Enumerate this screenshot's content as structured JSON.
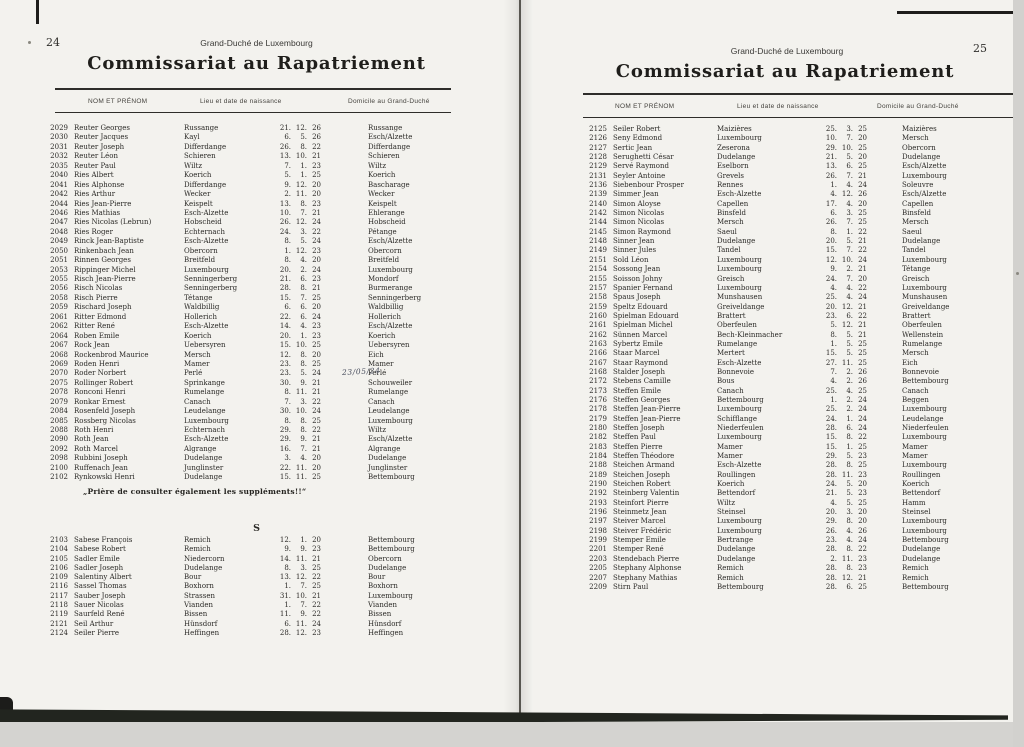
{
  "left": {
    "page_number": "24",
    "kicker": "Grand-Duché de Luxembourg",
    "title": "Commissariat au Rapatriement",
    "columns": {
      "name": "NOM ET PRÉNOM",
      "birth": "Lieu et date de naissance",
      "domicile": "Domicile au Grand-Duché"
    },
    "rows": [
      {
        "id": "2029",
        "name": "Reuter Georges",
        "birth": "Russange",
        "date": "21. 12. 26",
        "dom": "Russange"
      },
      {
        "id": "2030",
        "name": "Reuter Jacques",
        "birth": "Kayl",
        "date": "6. 5. 26",
        "dom": "Esch/Alzette"
      },
      {
        "id": "2031",
        "name": "Reuter Joseph",
        "birth": "Differdange",
        "date": "26. 8. 22",
        "dom": "Differdange"
      },
      {
        "id": "2032",
        "name": "Reuter Léon",
        "birth": "Schieren",
        "date": "13. 10. 21",
        "dom": "Schieren"
      },
      {
        "id": "2035",
        "name": "Reuter Paul",
        "birth": "Wiltz",
        "date": "7. 1. 23",
        "dom": "Wiltz"
      },
      {
        "id": "2040",
        "name": "Ries Albert",
        "birth": "Koerich",
        "date": "5. 1. 25",
        "dom": "Koerich"
      },
      {
        "id": "2041",
        "name": "Ries Alphonse",
        "birth": "Differdange",
        "date": "9. 12. 20",
        "dom": "Bascharage"
      },
      {
        "id": "2042",
        "name": "Ries Arthur",
        "birth": "Wecker",
        "date": "2. 11. 20",
        "dom": "Wecker"
      },
      {
        "id": "2044",
        "name": "Ries Jean-Pierre",
        "birth": "Keispelt",
        "date": "13. 8. 23",
        "dom": "Keispelt"
      },
      {
        "id": "2046",
        "name": "Ries Mathias",
        "birth": "Esch-Alzette",
        "date": "10. 7. 21",
        "dom": "Ehlerange"
      },
      {
        "id": "2047",
        "name": "Ries Nicolas (Lebrun)",
        "birth": "Hobscheid",
        "date": "26. 12. 24",
        "dom": "Hobscheid"
      },
      {
        "id": "2048",
        "name": "Ries Roger",
        "birth": "Echternach",
        "date": "24. 3. 22",
        "dom": "Pétange"
      },
      {
        "id": "2049",
        "name": "Rinck Jean-Baptiste",
        "birth": "Esch-Alzette",
        "date": "8. 5. 24",
        "dom": "Esch/Alzette"
      },
      {
        "id": "2050",
        "name": "Rinkenbach Jean",
        "birth": "Obercorn",
        "date": "1. 12. 23",
        "dom": "Obercorn"
      },
      {
        "id": "2051",
        "name": "Rinnen Georges",
        "birth": "Breitfeld",
        "date": "8. 4. 20",
        "dom": "Breitfeld"
      },
      {
        "id": "2053",
        "name": "Rippinger Michel",
        "birth": "Luxembourg",
        "date": "20. 2. 24",
        "dom": "Luxembourg"
      },
      {
        "id": "2055",
        "name": "Risch Jean-Pierre",
        "birth": "Senningerberg",
        "date": "21. 6. 23",
        "dom": "Mondorf"
      },
      {
        "id": "2056",
        "name": "Risch Nicolas",
        "birth": "Senningerberg",
        "date": "28. 8. 21",
        "dom": "Burmerange"
      },
      {
        "id": "2058",
        "name": "Risch Pierre",
        "birth": "Tétange",
        "date": "15. 7. 25",
        "dom": "Senningerberg"
      },
      {
        "id": "2059",
        "name": "Rischard Joseph",
        "birth": "Waldbillig",
        "date": "6. 6. 20",
        "dom": "Waldbillig"
      },
      {
        "id": "2061",
        "name": "Ritter Edmond",
        "birth": "Hollerich",
        "date": "22. 6. 24",
        "dom": "Hollerich"
      },
      {
        "id": "2062",
        "name": "Ritter René",
        "birth": "Esch-Alzette",
        "date": "14. 4. 23",
        "dom": "Esch/Alzette"
      },
      {
        "id": "2064",
        "name": "Roben Emile",
        "birth": "Koerich",
        "date": "20. 1. 23",
        "dom": "Koerich"
      },
      {
        "id": "2067",
        "name": "Rock Jean",
        "birth": "Uebersyren",
        "date": "15. 10. 25",
        "dom": "Uebersyren"
      },
      {
        "id": "2068",
        "name": "Rockenbrod Maurice",
        "birth": "Mersch",
        "date": "12. 8. 20",
        "dom": "Eich"
      },
      {
        "id": "2069",
        "name": "Roden Henri",
        "birth": "Mamer",
        "date": "23. 8. 25",
        "dom": "Mamer"
      },
      {
        "id": "2070",
        "name": "Roder Norbert",
        "birth": "Perlé",
        "date": "23. 5. 24",
        "dom": "Perlé",
        "hand": "23/05/24"
      },
      {
        "id": "2075",
        "name": "Rollinger Robert",
        "birth": "Sprinkange",
        "date": "30. 9. 21",
        "dom": "Schouweiler"
      },
      {
        "id": "2078",
        "name": "Ronconi Henri",
        "birth": "Rumelange",
        "date": "8. 11. 21",
        "dom": "Rumelange"
      },
      {
        "id": "2079",
        "name": "Ronkar Ernest",
        "birth": "Canach",
        "date": "7. 3. 22",
        "dom": "Canach"
      },
      {
        "id": "2084",
        "name": "Rosenfeld Joseph",
        "birth": "Leudelange",
        "date": "30. 10. 24",
        "dom": "Leudelange"
      },
      {
        "id": "2085",
        "name": "Rossberg Nicolas",
        "birth": "Luxembourg",
        "date": "8. 8. 25",
        "dom": "Luxembourg"
      },
      {
        "id": "2088",
        "name": "Roth Henri",
        "birth": "Echternach",
        "date": "29. 8. 22",
        "dom": "Wiltz"
      },
      {
        "id": "2090",
        "name": "Roth Jean",
        "birth": "Esch-Alzette",
        "date": "29. 9. 21",
        "dom": "Esch/Alzette"
      },
      {
        "id": "2092",
        "name": "Roth Marcel",
        "birth": "Algrange",
        "date": "16. 7. 21",
        "dom": "Algrange"
      },
      {
        "id": "2098",
        "name": "Rubbini Joseph",
        "birth": "Dudelange",
        "date": "3. 4. 20",
        "dom": "Dudelange"
      },
      {
        "id": "2100",
        "name": "Ruffenach Jean",
        "birth": "Junglinster",
        "date": "22. 11. 20",
        "dom": "Junglinster"
      },
      {
        "id": "2102",
        "name": "Rynkowski Henri",
        "birth": "Dudelange",
        "date": "15. 11. 25",
        "dom": "Bettembourg"
      }
    ],
    "note": "„Prière de consulter également les suppléments!!“",
    "section_letter": "S",
    "rows_s": [
      {
        "id": "2103",
        "name": "Sabese François",
        "birth": "Remich",
        "date": "12. 1. 20",
        "dom": "Bettembourg"
      },
      {
        "id": "2104",
        "name": "Sabese Robert",
        "birth": "Remich",
        "date": "9. 9. 23",
        "dom": "Bettembourg"
      },
      {
        "id": "2105",
        "name": "Sadler Emile",
        "birth": "Niedercorn",
        "date": "14. 11. 21",
        "dom": "Obercorn"
      },
      {
        "id": "2106",
        "name": "Sadler Joseph",
        "birth": "Dudelange",
        "date": "8. 3. 25",
        "dom": "Dudelange"
      },
      {
        "id": "2109",
        "name": "Salentiny Albert",
        "birth": "Bour",
        "date": "13. 12. 22",
        "dom": "Bour"
      },
      {
        "id": "2116",
        "name": "Sassel Thomas",
        "birth": "Boxhorn",
        "date": "1. 7. 25",
        "dom": "Boxhorn"
      },
      {
        "id": "2117",
        "name": "Sauber Joseph",
        "birth": "Strassen",
        "date": "31. 10. 21",
        "dom": "Luxembourg"
      },
      {
        "id": "2118",
        "name": "Sauer Nicolas",
        "birth": "Vianden",
        "date": "1. 7. 22",
        "dom": "Vianden"
      },
      {
        "id": "2119",
        "name": "Saurfeld René",
        "birth": "Bissen",
        "date": "11. 9. 22",
        "dom": "Bissen"
      },
      {
        "id": "2121",
        "name": "Seil Arthur",
        "birth": "Hünsdorf",
        "date": "6. 11. 24",
        "dom": "Hünsdorf"
      },
      {
        "id": "2124",
        "name": "Seiler Pierre",
        "birth": "Heffingen",
        "date": "28. 12. 23",
        "dom": "Heffingen"
      }
    ]
  },
  "right": {
    "page_number": "25",
    "kicker": "Grand-Duché de Luxembourg",
    "title": "Commissariat au Rapatriement",
    "columns": {
      "name": "NOM ET PRÉNOM",
      "birth": "Lieu et date de naissance",
      "domicile": "Domicile au Grand-Duché"
    },
    "rows": [
      {
        "id": "2125",
        "name": "Seiler Robert",
        "birth": "Maizières",
        "date": "25. 3. 25",
        "dom": "Maizières"
      },
      {
        "id": "2126",
        "name": "Seny Edmond",
        "birth": "Luxembourg",
        "date": "10. 7. 20",
        "dom": "Mersch"
      },
      {
        "id": "2127",
        "name": "Sertic Jean",
        "birth": "Zeserona",
        "date": "29. 10. 25",
        "dom": "Obercorn"
      },
      {
        "id": "2128",
        "name": "Serughetti César",
        "birth": "Dudelange",
        "date": "21. 5. 20",
        "dom": "Dudelange"
      },
      {
        "id": "2129",
        "name": "Servé Raymond",
        "birth": "Eselborn",
        "date": "13. 6. 25",
        "dom": "Esch/Alzette"
      },
      {
        "id": "2131",
        "name": "Seyler Antoine",
        "birth": "Grevels",
        "date": "26. 7. 21",
        "dom": "Luxembourg"
      },
      {
        "id": "2136",
        "name": "Siebenbour Prosper",
        "birth": "Rennes",
        "date": "1. 4. 24",
        "dom": "Soleuvre"
      },
      {
        "id": "2139",
        "name": "Simmer Jean",
        "birth": "Esch-Alzette",
        "date": "4. 12. 26",
        "dom": "Esch/Alzette"
      },
      {
        "id": "2140",
        "name": "Simon Aloyse",
        "birth": "Capellen",
        "date": "17. 4. 20",
        "dom": "Capellen"
      },
      {
        "id": "2142",
        "name": "Simon Nicolas",
        "birth": "Binsfeld",
        "date": "6. 3. 25",
        "dom": "Binsfeld"
      },
      {
        "id": "2144",
        "name": "Simon Nicolas",
        "birth": "Mersch",
        "date": "26. 7. 25",
        "dom": "Mersch"
      },
      {
        "id": "2145",
        "name": "Simon Raymond",
        "birth": "Saeul",
        "date": "8. 1. 22",
        "dom": "Saeul"
      },
      {
        "id": "2148",
        "name": "Sinner Jean",
        "birth": "Dudelange",
        "date": "20. 5. 21",
        "dom": "Dudelange"
      },
      {
        "id": "2149",
        "name": "Sinner Jules",
        "birth": "Tandel",
        "date": "15. 7. 22",
        "dom": "Tandel"
      },
      {
        "id": "2151",
        "name": "Sold Léon",
        "birth": "Luxembourg",
        "date": "12. 10. 24",
        "dom": "Luxembourg"
      },
      {
        "id": "2154",
        "name": "Sossong Jean",
        "birth": "Luxembourg",
        "date": "9. 2. 21",
        "dom": "Tétange"
      },
      {
        "id": "2155",
        "name": "Soisson Johny",
        "birth": "Greisch",
        "date": "24. 7. 20",
        "dom": "Greisch"
      },
      {
        "id": "2157",
        "name": "Spanier Fernand",
        "birth": "Luxembourg",
        "date": "4. 4. 22",
        "dom": "Luxembourg"
      },
      {
        "id": "2158",
        "name": "Spaus Joseph",
        "birth": "Munshausen",
        "date": "25. 4. 24",
        "dom": "Munshausen"
      },
      {
        "id": "2159",
        "name": "Speltz Edouard",
        "birth": "Greiveldange",
        "date": "20. 12. 21",
        "dom": "Greiveldange"
      },
      {
        "id": "2160",
        "name": "Spielman Edouard",
        "birth": "Brattert",
        "date": "23. 6. 22",
        "dom": "Brattert"
      },
      {
        "id": "2161",
        "name": "Spielman Michel",
        "birth": "Oberfeulen",
        "date": "5. 12. 21",
        "dom": "Oberfeulen"
      },
      {
        "id": "2162",
        "name": "Sünnen Marcel",
        "birth": "Bech-Kleinmacher",
        "date": "8. 5. 21",
        "dom": "Wellenstein"
      },
      {
        "id": "2163",
        "name": "Sybertz Emile",
        "birth": "Rumelange",
        "date": "1. 5. 25",
        "dom": "Rumelange"
      },
      {
        "id": "2166",
        "name": "Staar Marcel",
        "birth": "Mertert",
        "date": "15. 5. 25",
        "dom": "Mersch"
      },
      {
        "id": "2167",
        "name": "Staar Raymond",
        "birth": "Esch-Alzette",
        "date": "27. 11. 25",
        "dom": "Eich"
      },
      {
        "id": "2168",
        "name": "Stalder Joseph",
        "birth": "Bonnevoie",
        "date": "7. 2. 26",
        "dom": "Bonnevoie"
      },
      {
        "id": "2172",
        "name": "Stebens Camille",
        "birth": "Bous",
        "date": "4. 2. 26",
        "dom": "Bettembourg"
      },
      {
        "id": "2173",
        "name": "Steffen Emile",
        "birth": "Canach",
        "date": "25. 4. 25",
        "dom": "Canach"
      },
      {
        "id": "2176",
        "name": "Steffen Georges",
        "birth": "Bettembourg",
        "date": "1. 2. 24",
        "dom": "Beggen"
      },
      {
        "id": "2178",
        "name": "Steffen Jean-Pierre",
        "birth": "Luxembourg",
        "date": "25. 2. 24",
        "dom": "Luxembourg"
      },
      {
        "id": "2179",
        "name": "Steffen Jean-Pierre",
        "birth": "Schifflange",
        "date": "24. 1. 24",
        "dom": "Leudelange"
      },
      {
        "id": "2180",
        "name": "Steffen Joseph",
        "birth": "Niederfeulen",
        "date": "28. 6. 24",
        "dom": "Niederfeulen"
      },
      {
        "id": "2182",
        "name": "Steffen Paul",
        "birth": "Luxembourg",
        "date": "15. 8. 22",
        "dom": "Luxembourg"
      },
      {
        "id": "2183",
        "name": "Steffen Pierre",
        "birth": "Mamer",
        "date": "15. 1. 25",
        "dom": "Mamer"
      },
      {
        "id": "2184",
        "name": "Steffen Théodore",
        "birth": "Mamer",
        "date": "29. 5. 23",
        "dom": "Mamer"
      },
      {
        "id": "2188",
        "name": "Steichen Armand",
        "birth": "Esch-Alzette",
        "date": "28. 8. 25",
        "dom": "Luxembourg"
      },
      {
        "id": "2189",
        "name": "Steichen Joseph",
        "birth": "Roullingen",
        "date": "28. 11. 23",
        "dom": "Roullingen"
      },
      {
        "id": "2190",
        "name": "Steichen Robert",
        "birth": "Koerich",
        "date": "24. 5. 20",
        "dom": "Koerich"
      },
      {
        "id": "2192",
        "name": "Steinberg Valentin",
        "birth": "Bettendorf",
        "date": "21. 5. 23",
        "dom": "Bettendorf"
      },
      {
        "id": "2193",
        "name": "Steinfort Pierre",
        "birth": "Wiltz",
        "date": "4. 5. 25",
        "dom": "Hamm"
      },
      {
        "id": "2196",
        "name": "Steinmetz Jean",
        "birth": "Steinsel",
        "date": "20. 3. 20",
        "dom": "Steinsel"
      },
      {
        "id": "2197",
        "name": "Steiver Marcel",
        "birth": "Luxembourg",
        "date": "29. 8. 20",
        "dom": "Luxembourg"
      },
      {
        "id": "2198",
        "name": "Steiver Frédéric",
        "birth": "Luxembourg",
        "date": "26. 4. 26",
        "dom": "Luxembourg"
      },
      {
        "id": "2199",
        "name": "Stemper Emile",
        "birth": "Bertrange",
        "date": "23. 4. 24",
        "dom": "Bettembourg"
      },
      {
        "id": "2201",
        "name": "Stemper René",
        "birth": "Dudelange",
        "date": "28. 8. 22",
        "dom": "Dudelange"
      },
      {
        "id": "2203",
        "name": "Stendebach Pierre",
        "birth": "Dudelange",
        "date": "2. 11. 23",
        "dom": "Dudelange"
      },
      {
        "id": "2205",
        "name": "Stephany Alphonse",
        "birth": "Remich",
        "date": "28. 8. 23",
        "dom": "Remich"
      },
      {
        "id": "2207",
        "name": "Stephany Mathias",
        "birth": "Remich",
        "date": "28. 12. 21",
        "dom": "Remich"
      },
      {
        "id": "2209",
        "name": "Stirn Paul",
        "birth": "Bettembourg",
        "date": "28. 6. 25",
        "dom": "Bettembourg"
      }
    ]
  }
}
